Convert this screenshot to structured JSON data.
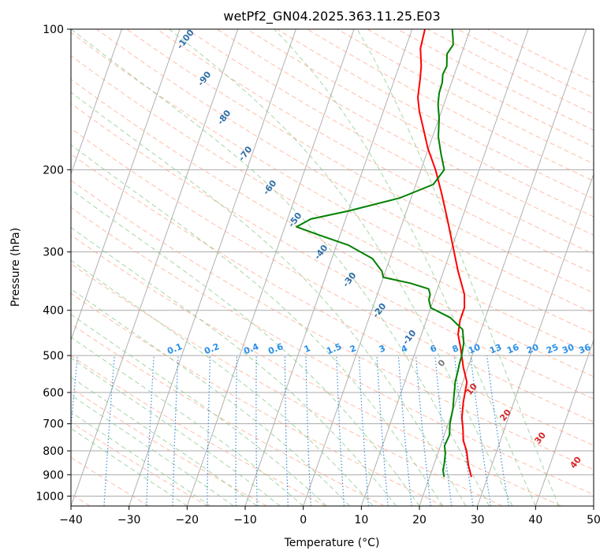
{
  "chart_data": {
    "type": "line",
    "title": "wetPf2_GN04.2025.363.11.25.E03",
    "xlabel": "Temperature (°C)",
    "ylabel": "Pressure (hPa)",
    "xlim": [
      -40,
      50
    ],
    "ylim": [
      1050,
      100
    ],
    "y_scale": "log",
    "x_ticks": [
      -40,
      -30,
      -20,
      -10,
      0,
      10,
      20,
      30,
      40,
      50
    ],
    "x_tick_labels": [
      "−40",
      "−30",
      "−20",
      "−10",
      "0",
      "10",
      "20",
      "30",
      "40",
      "50"
    ],
    "y_ticks": [
      100,
      200,
      300,
      400,
      500,
      600,
      700,
      800,
      900,
      1000
    ],
    "y_tick_labels": [
      "100",
      "200",
      "300",
      "400",
      "500",
      "600",
      "700",
      "800",
      "900",
      "1000"
    ],
    "grid": true,
    "series": [
      {
        "name": "temperature",
        "color": "#ff0000",
        "values_temp_c": [
          27.2,
          26.0,
          24.8,
          23.6,
          22.9,
          22.0,
          21.3,
          20.7,
          19.2,
          17.5,
          16.3,
          15.8,
          15.8,
          15.0,
          12.5,
          10.0,
          7.5,
          5.0,
          2.5,
          -0.1,
          -2.1,
          -3.8,
          -4.9,
          -5.6,
          -6.2,
          -7.4,
          -7.8
        ],
        "values_pres_hpa": [
          910,
          860,
          800,
          760,
          720,
          680,
          630,
          570,
          530,
          480,
          450,
          420,
          395,
          370,
          330,
          290,
          255,
          225,
          200,
          180,
          163,
          150,
          140,
          128,
          120,
          110,
          100
        ]
      },
      {
        "name": "dewpoint",
        "color": "#008000",
        "values_temp_c": [
          22.5,
          21.9,
          21.7,
          21.3,
          20.7,
          20.9,
          20.3,
          19.9,
          19.3,
          18.7,
          18.5,
          18.3,
          18.2,
          17.8,
          16.8,
          14.0,
          10.0,
          9.2,
          9.1,
          8.5,
          5.0,
          0.0,
          -0.6,
          -3.0,
          -8.0,
          -14.0,
          -18.0,
          -16.0,
          -10.0,
          -2.0,
          3.0,
          4.0,
          2.5,
          1.0,
          0.0,
          -1.0,
          -1.5,
          -1.6,
          -2.0,
          -1.8,
          -2.5,
          -2.0,
          -2.5,
          -3.1
        ],
        "values_pres_hpa": [
          910,
          880,
          850,
          810,
          780,
          740,
          700,
          650,
          610,
          570,
          540,
          520,
          500,
          470,
          440,
          415,
          395,
          380,
          370,
          360,
          350,
          340,
          330,
          310,
          290,
          275,
          265,
          255,
          245,
          230,
          215,
          200,
          185,
          170,
          155,
          145,
          137,
          130,
          125,
          120,
          113,
          108,
          104,
          100
        ]
      }
    ],
    "dry_adiabat_labels": [
      "-100",
      "-90",
      "-80",
      "-70",
      "-60",
      "-50",
      "-40",
      "-30",
      "-20",
      "-10",
      "0",
      "10",
      "20",
      "30",
      "40"
    ],
    "mixing_ratio_labels": [
      "0.1",
      "0.2",
      "0.4",
      "0.6",
      "1",
      "1.5",
      "2",
      "3",
      "4",
      "6",
      "8",
      "10",
      "13",
      "16",
      "20",
      "25",
      "30",
      "36"
    ]
  },
  "colors": {
    "background": "#ffffff",
    "isobar": "#aaaaaa",
    "isotherm": "#b0b0b0",
    "dry_adiabat": "#ff9a7a",
    "moist_adiabat": "#88c888",
    "mixing_ratio": "#3a8fd8",
    "dry_label_cold": "#2f6fa8",
    "dry_label_warm": "#d62728",
    "dry_label_zero": "#7f7f7f",
    "mixing_label": "#2a8fe6"
  }
}
